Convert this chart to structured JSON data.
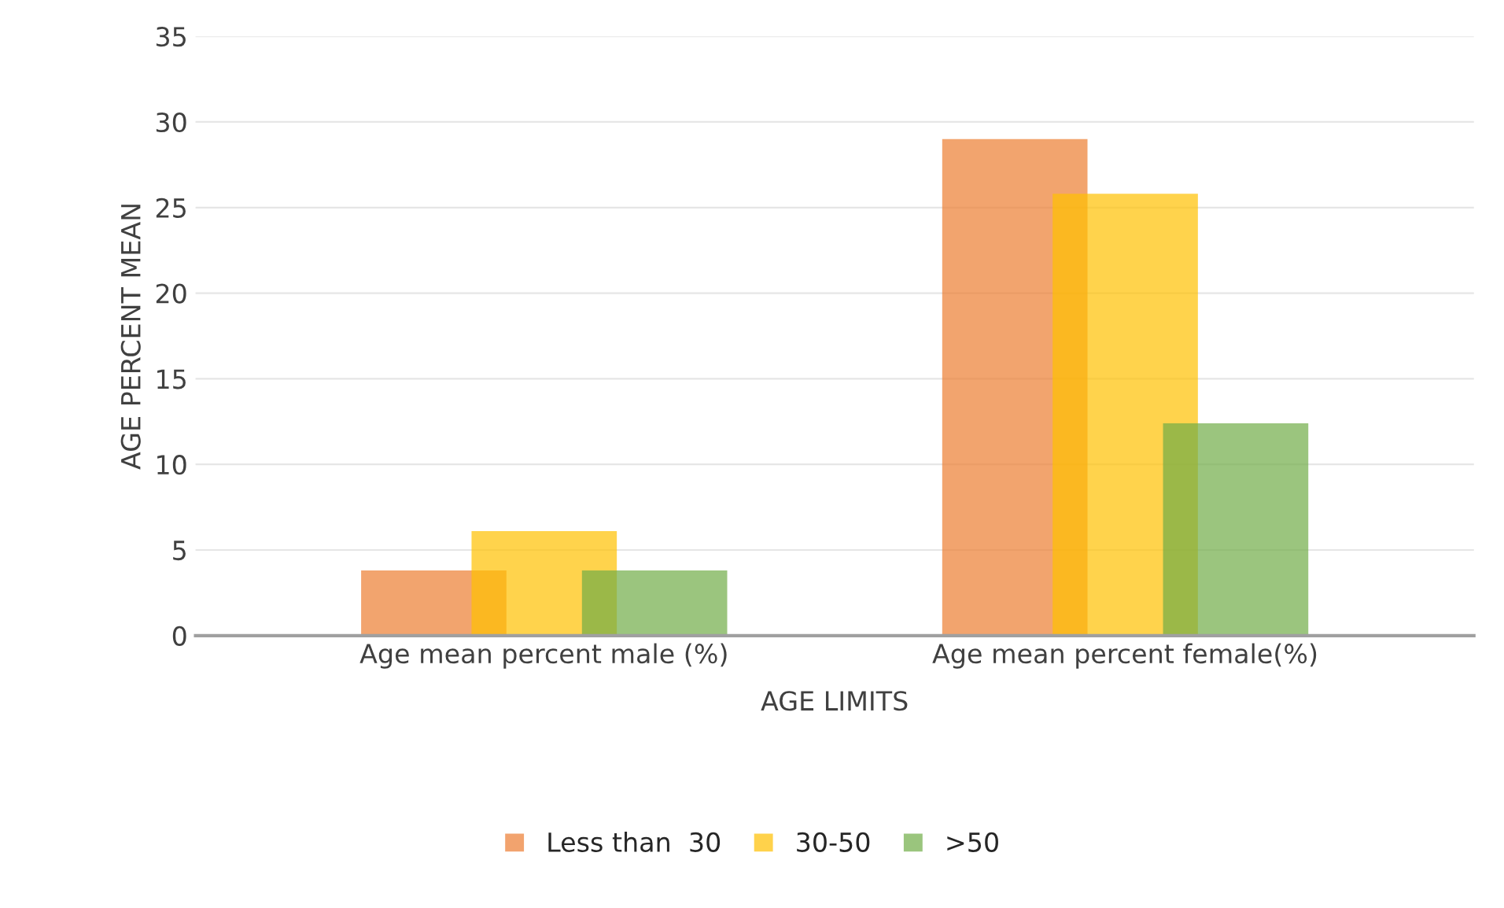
{
  "chart_data": {
    "type": "bar",
    "xlabel": "AGE LIMITS",
    "ylabel": "AGE PERCENT MEAN",
    "categories": [
      "Age mean percent male (%)",
      "Age mean percent female(%)"
    ],
    "series": [
      {
        "name": "Less than  30",
        "color": "#ed7d31",
        "values": [
          3.8,
          29.0
        ]
      },
      {
        "name": "30-50",
        "color": "#ffc000",
        "values": [
          6.1,
          25.8
        ]
      },
      {
        "name": ">50",
        "color": "#70ad47",
        "values": [
          3.8,
          12.4
        ]
      }
    ],
    "ylim": [
      0,
      35
    ],
    "yticks": [
      0,
      5,
      10,
      15,
      20,
      25,
      30,
      35
    ],
    "grid": "y",
    "legend": "bottom"
  }
}
